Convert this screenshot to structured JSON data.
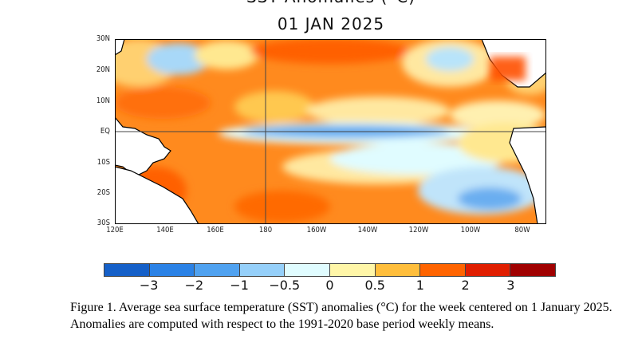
{
  "figure": {
    "title": "SST Anomalies (°C)",
    "date": "01 JAN 2025",
    "lat_labels": [
      "30N",
      "20N",
      "10N",
      "EQ",
      "10S",
      "20S",
      "30S"
    ],
    "lon_labels": [
      "120E",
      "140E",
      "160E",
      "180",
      "160W",
      "140W",
      "120W",
      "100W",
      "80W"
    ],
    "colorbar": {
      "colors": [
        "#1560c8",
        "#2b82e6",
        "#50a2f0",
        "#96d0fa",
        "#e0fcff",
        "#fff6a8",
        "#ffbe3c",
        "#ff6400",
        "#e01e00",
        "#a00000"
      ],
      "labels": [
        "−3",
        "−2",
        "−1",
        "−0.5",
        "0",
        "0.5",
        "1",
        "2",
        "3"
      ]
    },
    "caption": "Figure 1. Average sea surface temperature (SST) anomalies (°C) for the week centered on 1 January 2025.  Anomalies are computed with respect to the 1991-2020 base period weekly means."
  }
}
